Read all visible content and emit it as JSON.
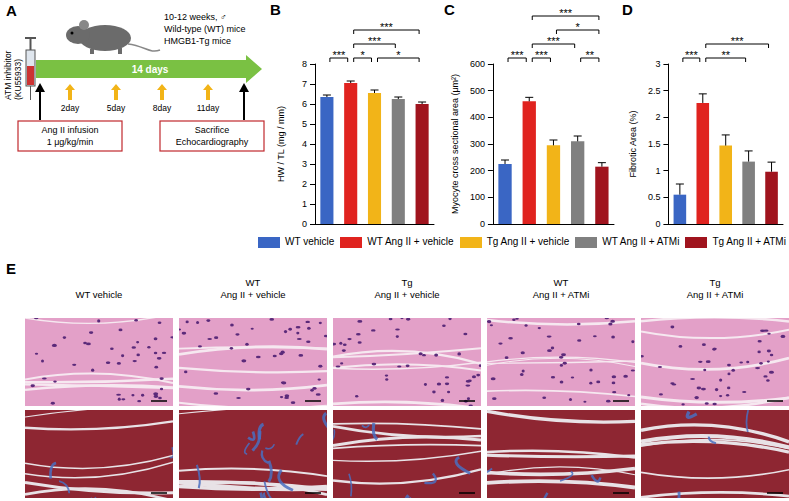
{
  "figure": {
    "A": {
      "panel": "A",
      "inhibitor": [
        "ATM inhibitor",
        "(KU55933)"
      ],
      "mice": [
        "10-12 weeks, ♂",
        "Wild-type (WT) mice",
        "HMGB1-Tg mice"
      ],
      "duration": "14 days",
      "injection_days": [
        "2day",
        "5day",
        "8day",
        "11day"
      ],
      "start_box": [
        "Ang II infusion",
        "1 μg/kg/min"
      ],
      "end_box": [
        "Sacrifice",
        "Echocardiography"
      ]
    },
    "E": {
      "panel": "E",
      "columns": [
        [
          "WT vehicle"
        ],
        [
          "WT",
          "Ang II + vehicle"
        ],
        [
          "Tg",
          "Ang II + vehicle"
        ],
        [
          "WT",
          "Ang II + ATMi"
        ],
        [
          "Tg",
          "Ang II + ATMi"
        ]
      ]
    }
  },
  "chart_data": [
    {
      "panel": "B",
      "type": "bar",
      "ylabel": "HW / TL (mg / mm)",
      "categories": [
        "WT vehicle",
        "WT Ang II + vehicle",
        "Tg Ang II + vehicle",
        "WT Ang II + ATMi",
        "Tg Ang II + ATMi"
      ],
      "values": [
        6.35,
        7.05,
        6.55,
        6.25,
        6.0
      ],
      "errors": [
        0.1,
        0.1,
        0.15,
        0.1,
        0.1
      ],
      "colors": [
        "#3a66c4",
        "#e0231f",
        "#f2b418",
        "#808080",
        "#a0141e"
      ],
      "ylim": [
        0,
        8
      ],
      "yticks": [
        0,
        1,
        2,
        3,
        4,
        5,
        6,
        7,
        8
      ],
      "grid": false,
      "tick_labels": "y",
      "annotations": [
        {
          "from": 0,
          "to": 1,
          "text": "***"
        },
        {
          "from": 1,
          "to": 4,
          "text": "***"
        },
        {
          "from": 1,
          "to": 3,
          "text": "***"
        },
        {
          "from": 1,
          "to": 2,
          "text": "*"
        },
        {
          "from": 2,
          "to": 4,
          "text": "*"
        }
      ]
    },
    {
      "panel": "C",
      "type": "bar",
      "ylabel": "Myocyte cross sectional area (μm²)",
      "categories": [
        "WT vehicle",
        "WT Ang II + vehicle",
        "Tg Ang II + vehicle",
        "WT Ang II + ATMi",
        "Tg Ang II + ATMi"
      ],
      "values": [
        225,
        460,
        295,
        310,
        215
      ],
      "errors": [
        15,
        15,
        20,
        20,
        15
      ],
      "colors": [
        "#3a66c4",
        "#e0231f",
        "#f2b418",
        "#808080",
        "#a0141e"
      ],
      "ylim": [
        0,
        600
      ],
      "yticks": [
        0,
        100,
        200,
        300,
        400,
        500,
        600
      ],
      "grid": false,
      "tick_labels": "y",
      "annotations": [
        {
          "from": 0,
          "to": 1,
          "text": "***"
        },
        {
          "from": 1,
          "to": 4,
          "text": "***"
        },
        {
          "from": 1,
          "to": 2,
          "text": "***"
        },
        {
          "from": 1,
          "to": 3,
          "text": "***"
        },
        {
          "from": 2,
          "to": 4,
          "text": "*"
        },
        {
          "from": 3,
          "to": 4,
          "text": "**"
        }
      ]
    },
    {
      "panel": "D",
      "type": "bar",
      "ylabel": "Fibrotic Area (%)",
      "categories": [
        "WT vehicle",
        "WT Ang II + vehicle",
        "Tg Ang II + vehicle",
        "WT Ang II + ATMi",
        "Tg Ang II + ATMi"
      ],
      "values": [
        0.55,
        2.27,
        1.47,
        1.17,
        0.98
      ],
      "errors": [
        0.2,
        0.17,
        0.2,
        0.2,
        0.18
      ],
      "colors": [
        "#3a66c4",
        "#e0231f",
        "#f2b418",
        "#808080",
        "#a0141e"
      ],
      "ylim": [
        0,
        3
      ],
      "yticks": [
        0,
        0.5,
        1,
        1.5,
        2,
        2.5,
        3
      ],
      "grid": false,
      "tick_labels": "y",
      "annotations": [
        {
          "from": 0,
          "to": 1,
          "text": "***"
        },
        {
          "from": 1,
          "to": 4,
          "text": "***"
        },
        {
          "from": 1,
          "to": 3,
          "text": "**"
        }
      ]
    }
  ]
}
